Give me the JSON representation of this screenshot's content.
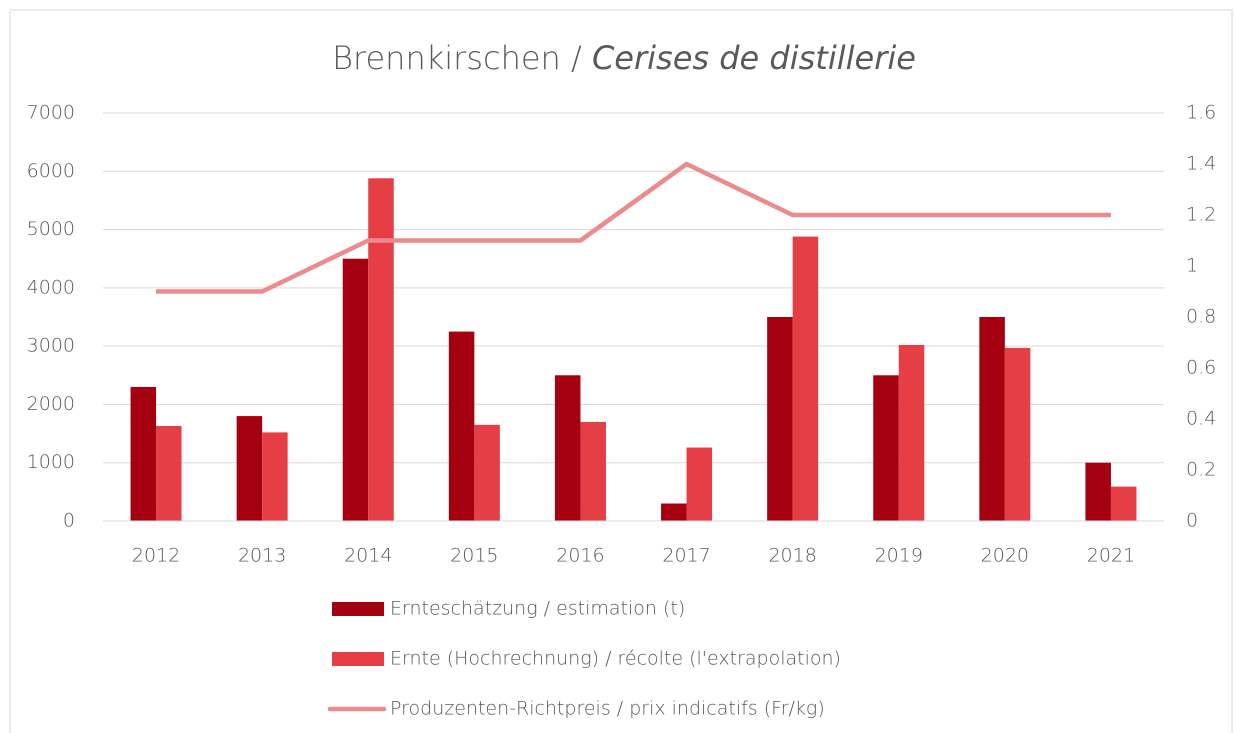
{
  "chart_data": {
    "type": "bar_line",
    "title": "Brennkirschen /",
    "title_italic": "Cerises de distillerie",
    "categories": [
      "2012",
      "2013",
      "2014",
      "2015",
      "2016",
      "2017",
      "2018",
      "2019",
      "2020",
      "2021"
    ],
    "series": [
      {
        "name": "Ernteschätzung / estimation (t)",
        "color": "#a50010",
        "kind": "bar",
        "values": [
          2300,
          1800,
          4500,
          3250,
          2500,
          300,
          3500,
          2500,
          3500,
          1000
        ]
      },
      {
        "name": "Ernte (Hochrechnung) / récolte (l'extrapolation)",
        "color": "#e63e45",
        "kind": "bar",
        "values": [
          1630,
          1520,
          5880,
          1650,
          1700,
          1260,
          4880,
          3020,
          2970,
          590
        ]
      },
      {
        "name": "Produzenten-Richtpreis / prix indicatifs (Fr/kg)",
        "color": "#ec8a8c",
        "kind": "line",
        "axis": "y2",
        "values": [
          0.9,
          0.9,
          1.1,
          1.1,
          1.1,
          1.4,
          1.2,
          1.2,
          1.2,
          1.2
        ]
      }
    ],
    "ylim": [
      0,
      7000
    ],
    "yticks": [
      0,
      1000,
      2000,
      3000,
      4000,
      5000,
      6000,
      7000
    ],
    "y2lim": [
      0,
      1.6
    ],
    "y2ticks": [
      0,
      0.2,
      0.4,
      0.6,
      0.8,
      1,
      1.2,
      1.4,
      1.6
    ],
    "grid": true,
    "legend": "bottom"
  }
}
